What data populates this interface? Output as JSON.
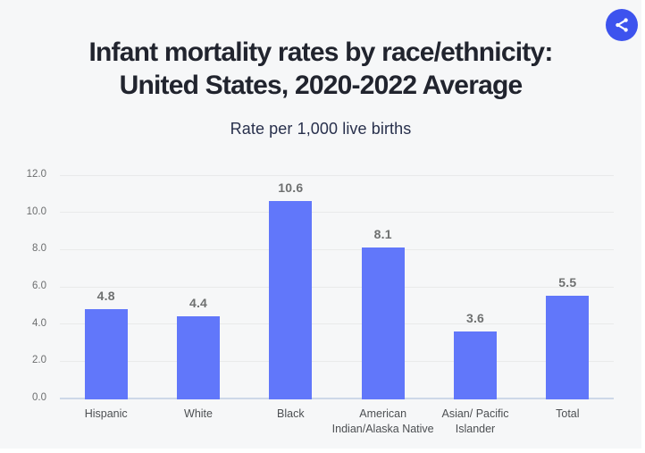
{
  "page": {
    "background_color": "#f6f7f8",
    "accent_color": "#3d53ee"
  },
  "header": {
    "title_line1": "Infant mortality rates by race/ethnicity:",
    "title_line2": "United States, 2020-2022 Average",
    "subtitle": "Rate per 1,000 live births"
  },
  "toolbar": {
    "share_icon": "share-icon"
  },
  "chart_data": {
    "type": "bar",
    "title": "Infant mortality rates by race/ethnicity: United States, 2020-2022 Average",
    "subtitle": "Rate per 1,000 live births",
    "categories": [
      "Hispanic",
      "White",
      "Black",
      "American Indian/Alaska Native",
      "Asian/ Pacific Islander",
      "Total"
    ],
    "values": [
      4.8,
      4.4,
      10.6,
      8.1,
      3.6,
      5.5
    ],
    "value_labels": [
      "4.8",
      "4.4",
      "10.6",
      "8.1",
      "3.6",
      "5.5"
    ],
    "ylim": [
      0,
      12
    ],
    "ytick_step": 2,
    "ytick_labels": [
      "0.0",
      "2.0",
      "4.0",
      "6.0",
      "8.0",
      "10.0",
      "12.0"
    ],
    "xlabel": "",
    "ylabel": "",
    "grid": true,
    "legend": false,
    "bar_color": "#6177fa",
    "gridline_color": "#e9eaea",
    "baseline_color": "#cdd8e8",
    "value_label_color": "#6e7070",
    "xtick_color": "#4c4f52",
    "ytick_color": "#6b6d6e"
  }
}
